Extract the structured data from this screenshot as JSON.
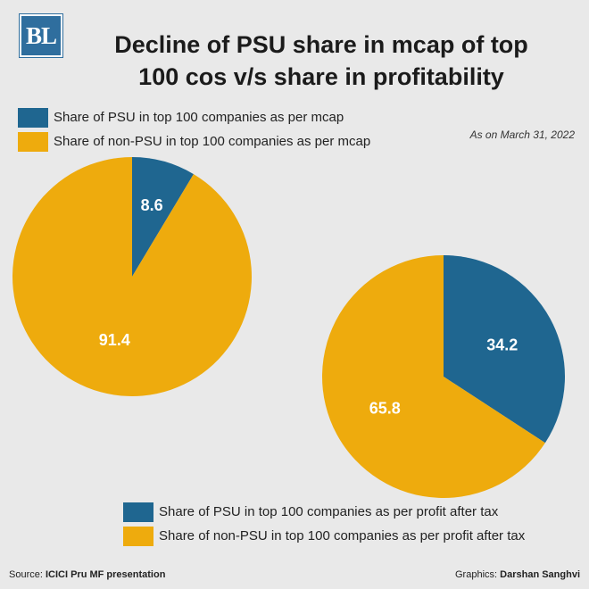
{
  "logo": {
    "text": "BL"
  },
  "title": {
    "line1": "Decline of PSU share in mcap of top",
    "line2": "100 cos v/s share in profitability"
  },
  "as_of": "As on March 31, 2022",
  "colors": {
    "psu": "#1f6690",
    "non_psu": "#eeab0d",
    "background": "#e9e9e9"
  },
  "chart_data": [
    {
      "type": "pie",
      "labels": [
        "Share of PSU in top 100 companies as per mcap",
        "Share of non-PSU in top 100 companies as per mcap"
      ],
      "values": [
        8.6,
        91.4
      ],
      "value_labels": [
        "8.6",
        "91.4"
      ],
      "colors": [
        "#1f6690",
        "#eeab0d"
      ],
      "legend_position": "top-left"
    },
    {
      "type": "pie",
      "labels": [
        "Share of PSU in top 100 companies as per profit after tax",
        "Share of non-PSU in top 100 companies as per profit after tax"
      ],
      "values": [
        34.2,
        65.8
      ],
      "value_labels": [
        "34.2",
        "65.8"
      ],
      "colors": [
        "#1f6690",
        "#eeab0d"
      ],
      "legend_position": "bottom"
    }
  ],
  "footer": {
    "source_prefix": "Source: ",
    "source": "ICICI Pru MF presentation",
    "graphics_prefix": "Graphics: ",
    "graphics": "Darshan Sanghvi"
  }
}
